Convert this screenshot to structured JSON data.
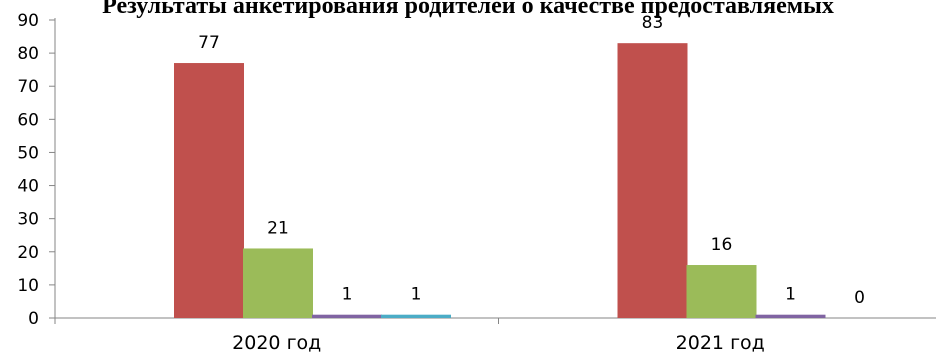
{
  "chart_data": {
    "type": "bar",
    "title": "Результаты анкетирования родителей о качестве предоставляемых",
    "categories": [
      "2020 год",
      "2021 год"
    ],
    "series": [
      {
        "values": [
          77,
          83
        ],
        "color": "#c0504d"
      },
      {
        "values": [
          21,
          16
        ],
        "color": "#9bbb59"
      },
      {
        "values": [
          1,
          1
        ],
        "color": "#8064a2"
      },
      {
        "values": [
          1,
          0
        ],
        "color": "#4bacc6"
      }
    ],
    "ylim": [
      0,
      90
    ],
    "yticks": [
      0,
      10,
      20,
      30,
      40,
      50,
      60,
      70,
      80,
      90
    ],
    "grid": false,
    "xlabel": "",
    "ylabel": ""
  }
}
